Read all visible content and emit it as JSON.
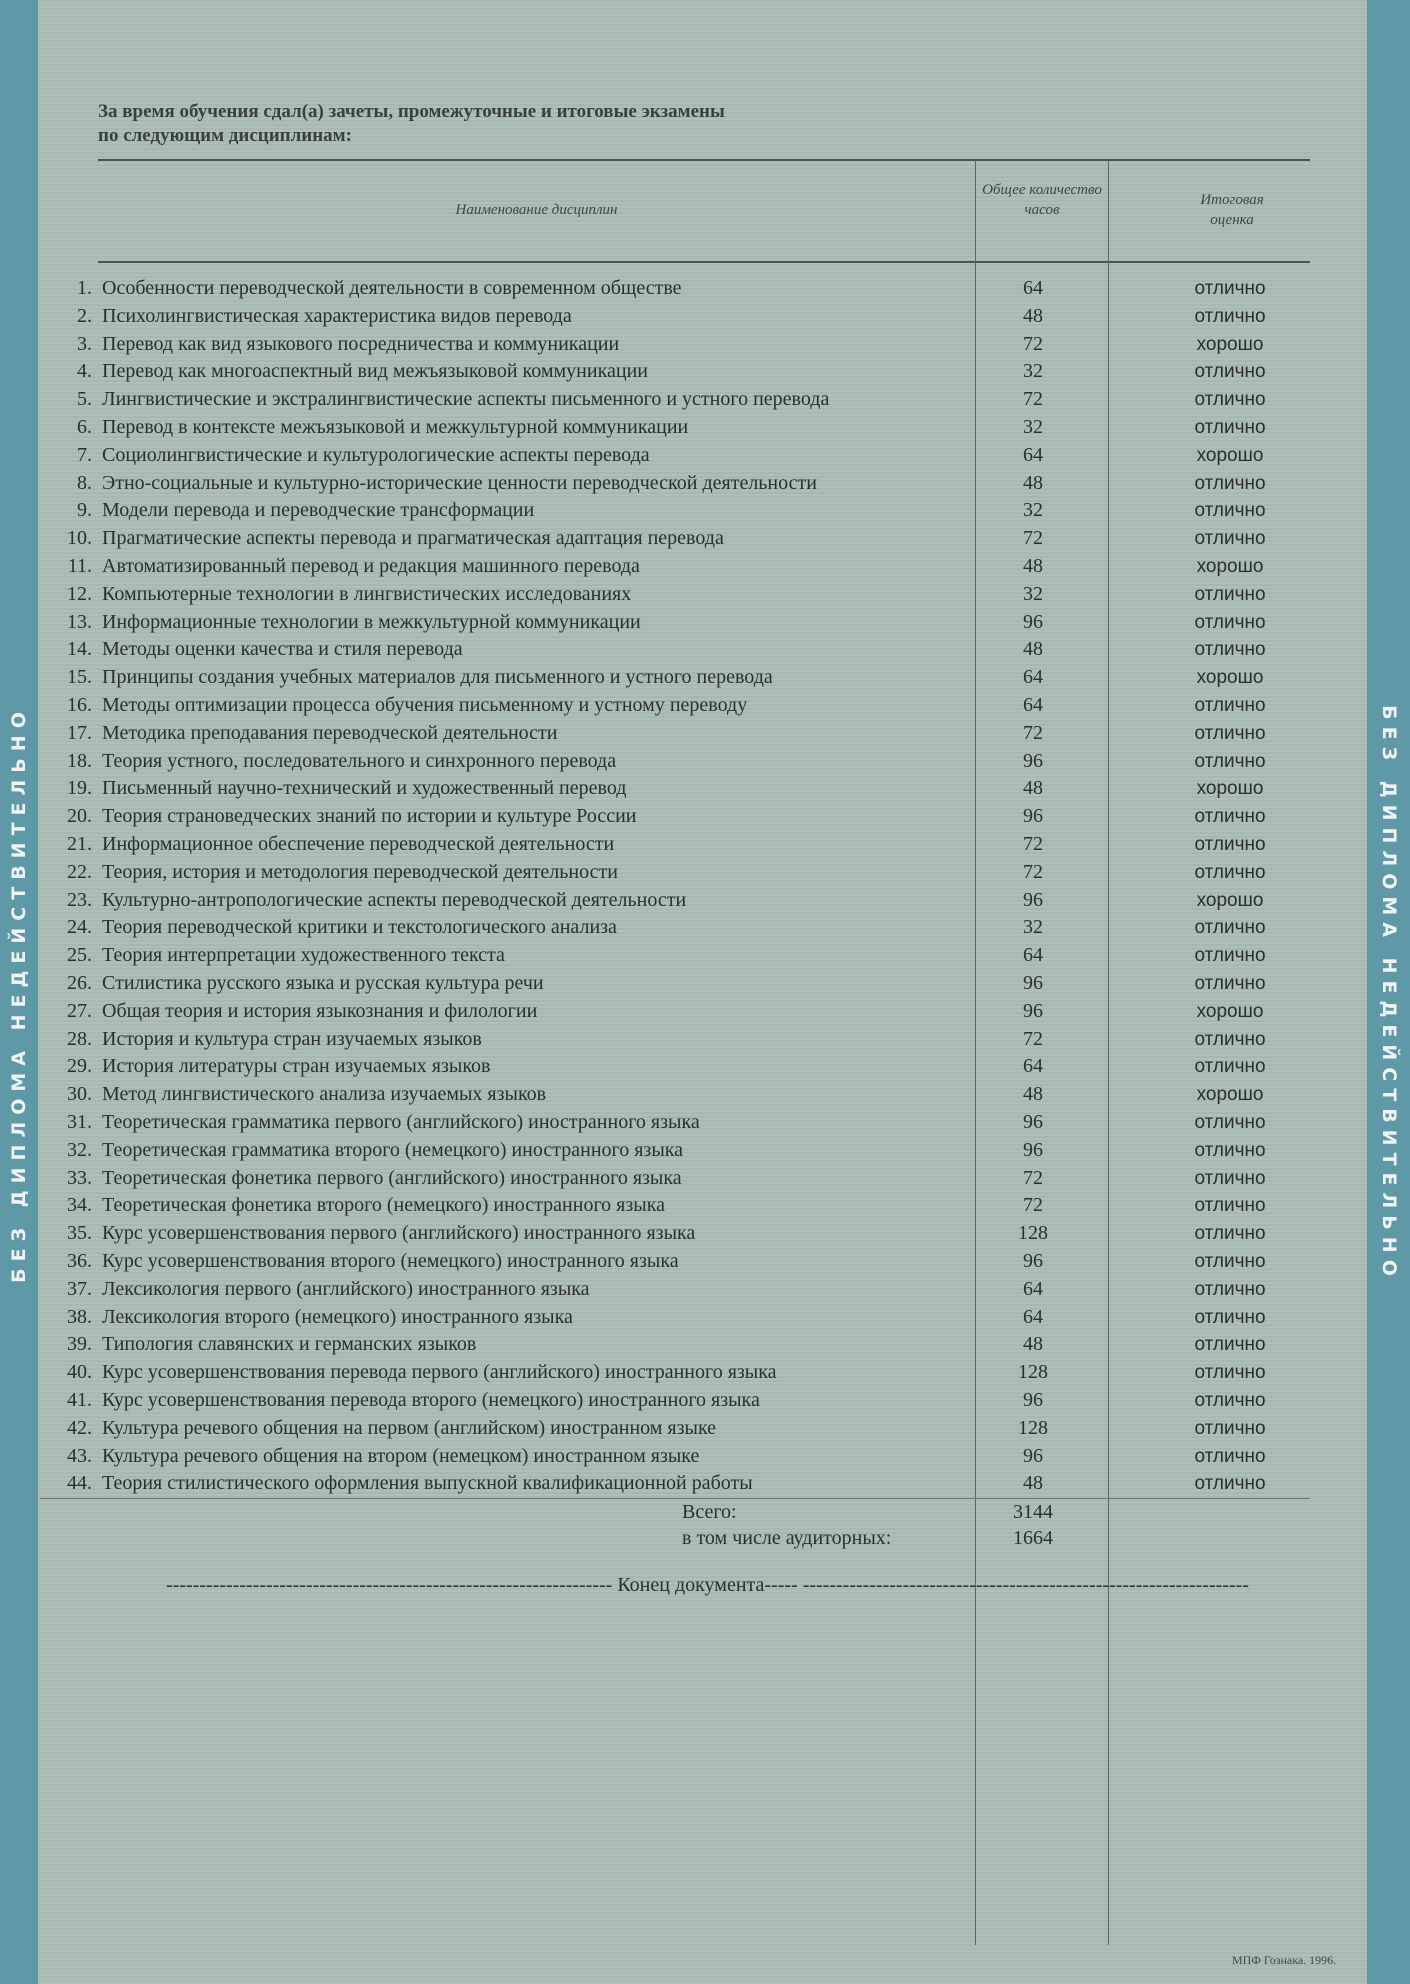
{
  "side_text": "БЕЗ ДИПЛОМА НЕДЕЙСТВИТЕЛЬНО",
  "intro": [
    "За время обучения сдал(а) зачеты, промежуточные и итоговые экзамены",
    "по следующим дисциплинам:"
  ],
  "headers": {
    "name": "Наименование дисциплин",
    "hours": "Общее количество часов",
    "grade": "Итоговая оценка"
  },
  "rows": [
    [
      "1.",
      "Особенности переводческой деятельности в современном обществе",
      "64",
      "отлично"
    ],
    [
      "2.",
      "Психолингвистическая характеристика видов перевода",
      "48",
      "отлично"
    ],
    [
      "3.",
      "Перевод как вид языкового посредничества и коммуникации",
      "72",
      "хорошо"
    ],
    [
      "4.",
      "Перевод как многоаспектный вид межъязыковой коммуникации",
      "32",
      "отлично"
    ],
    [
      "5.",
      "Лингвистические и экстралингвистические аспекты письменного и устного перевода",
      "72",
      "отлично"
    ],
    [
      "6.",
      "Перевод в контексте межъязыковой и межкультурной коммуникации",
      "32",
      "отлично"
    ],
    [
      "7.",
      "Социолингвистические и культурологические аспекты перевода",
      "64",
      "хорошо"
    ],
    [
      "8.",
      "Этно-социальные и культурно-исторические ценности переводческой деятельности",
      "48",
      "отлично"
    ],
    [
      "9.",
      "Модели перевода и переводческие трансформации",
      "32",
      "отлично"
    ],
    [
      "10.",
      "Прагматические аспекты перевода и прагматическая адаптация перевода",
      "72",
      "отлично"
    ],
    [
      "11.",
      "Автоматизированный перевод и редакция машинного перевода",
      "48",
      "хорошо"
    ],
    [
      "12.",
      "Компьютерные технологии в лингвистических исследованиях",
      "32",
      "отлично"
    ],
    [
      "13.",
      "Информационные технологии в межкультурной коммуникации",
      "96",
      "отлично"
    ],
    [
      "14.",
      "Методы оценки качества и стиля перевода",
      "48",
      "отлично"
    ],
    [
      "15.",
      "Принципы создания учебных материалов для письменного и устного перевода",
      "64",
      "хорошо"
    ],
    [
      "16.",
      "Методы оптимизации процесса обучения письменному и устному переводу",
      "64",
      "отлично"
    ],
    [
      "17.",
      "Методика преподавания переводческой деятельности",
      "72",
      "отлично"
    ],
    [
      "18.",
      "Теория устного, последовательного и синхронного перевода",
      "96",
      "отлично"
    ],
    [
      "19.",
      "Письменный научно-технический и художественный перевод",
      "48",
      "хорошо"
    ],
    [
      "20.",
      "Теория страноведческих знаний по истории и культуре России",
      "96",
      "отлично"
    ],
    [
      "21.",
      "Информационное обеспечение переводческой деятельности",
      "72",
      "отлично"
    ],
    [
      "22.",
      "Теория, история и методология переводческой деятельности",
      "72",
      "отлично"
    ],
    [
      "23.",
      "Культурно-антропологические аспекты переводческой деятельности",
      "96",
      "хорошо"
    ],
    [
      "24.",
      "Теория переводческой критики и текстологического анализа",
      "32",
      "отлично"
    ],
    [
      "25.",
      "Теория интерпретации художественного текста",
      "64",
      "отлично"
    ],
    [
      "26.",
      "Стилистика русского языка и русская культура речи",
      "96",
      "отлично"
    ],
    [
      "27.",
      "Общая теория и история языкознания и филологии",
      "96",
      "хорошо"
    ],
    [
      "28.",
      "История и культура стран изучаемых языков",
      "72",
      "отлично"
    ],
    [
      "29.",
      "История литературы стран изучаемых языков",
      "64",
      "отлично"
    ],
    [
      "30.",
      "Метод лингвистического анализа изучаемых языков",
      "48",
      "хорошо"
    ],
    [
      "31.",
      "Теоретическая грамматика первого (английского) иностранного языка",
      "96",
      "отлично"
    ],
    [
      "32.",
      "Теоретическая грамматика второго (немецкого) иностранного языка",
      "96",
      "отлично"
    ],
    [
      "33.",
      "Теоретическая фонетика первого (английского) иностранного языка",
      "72",
      "отлично"
    ],
    [
      "34.",
      "Теоретическая фонетика второго (немецкого) иностранного языка",
      "72",
      "отлично"
    ],
    [
      "35.",
      "Курс усовершенствования первого (английского) иностранного языка",
      "128",
      "отлично"
    ],
    [
      "36.",
      "Курс усовершенствования второго (немецкого) иностранного языка",
      "96",
      "отлично"
    ],
    [
      "37.",
      "Лексикология первого (английского) иностранного языка",
      "64",
      "отлично"
    ],
    [
      "38.",
      "Лексикология второго (немецкого) иностранного языка",
      "64",
      "отлично"
    ],
    [
      "39.",
      "Типология славянских и германских языков",
      "48",
      "отлично"
    ],
    [
      "40.",
      "Курс усовершенствования перевода первого (английского) иностранного языка",
      "128",
      "отлично"
    ],
    [
      "41.",
      "Курс усовершенствования перевода второго (немецкого) иностранного языка",
      "96",
      "отлично"
    ],
    [
      "42.",
      "Культура речевого общения на первом (английском) иностранном языке",
      "128",
      "отлично"
    ],
    [
      "43.",
      "Культура речевого общения на втором (немецком) иностранном языке",
      "96",
      "отлично"
    ],
    [
      "44.",
      "Теория стилистического оформления выпускной квалификационной работы",
      "48",
      "отлично"
    ]
  ],
  "totals": {
    "total_label": "Всего:",
    "total_value": "3144",
    "aud_label": "в том числе аудиторных:",
    "aud_value": "1664"
  },
  "end_text": "Конец документа",
  "footer": "МПФ Гознака. 1996."
}
